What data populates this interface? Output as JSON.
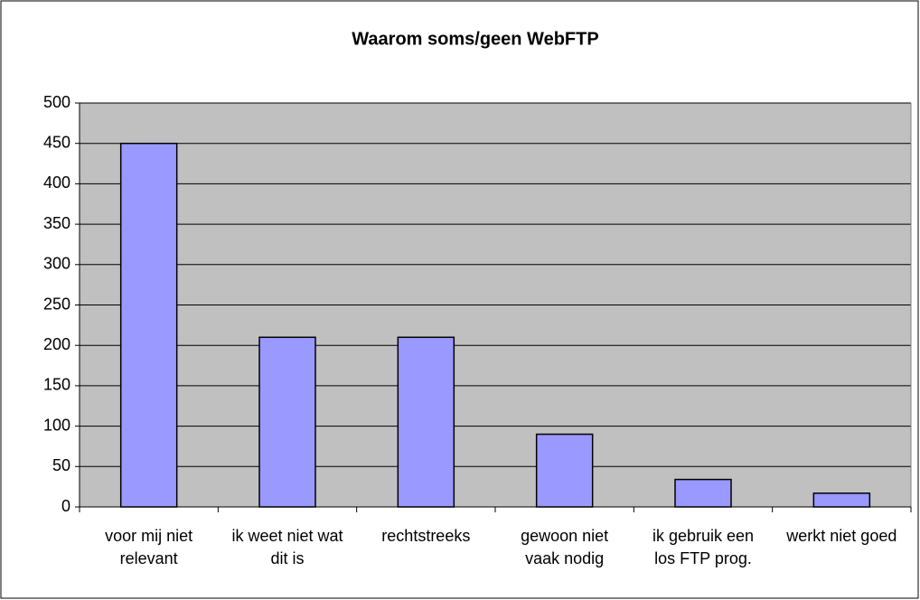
{
  "chart_data": {
    "type": "bar",
    "title": "Waarom soms/geen WebFTP",
    "categories": [
      "voor mij niet relevant",
      "ik weet niet wat dit is",
      "rechtstreeks",
      "gewoon niet vaak nodig",
      "ik gebruik een los FTP prog.",
      "werkt niet goed"
    ],
    "values": [
      450,
      210,
      210,
      90,
      34,
      17
    ],
    "color": "#9999ff",
    "ylim": [
      0,
      500
    ],
    "yticks": [
      0,
      50,
      100,
      150,
      200,
      250,
      300,
      350,
      400,
      450,
      500
    ],
    "grid": true
  }
}
